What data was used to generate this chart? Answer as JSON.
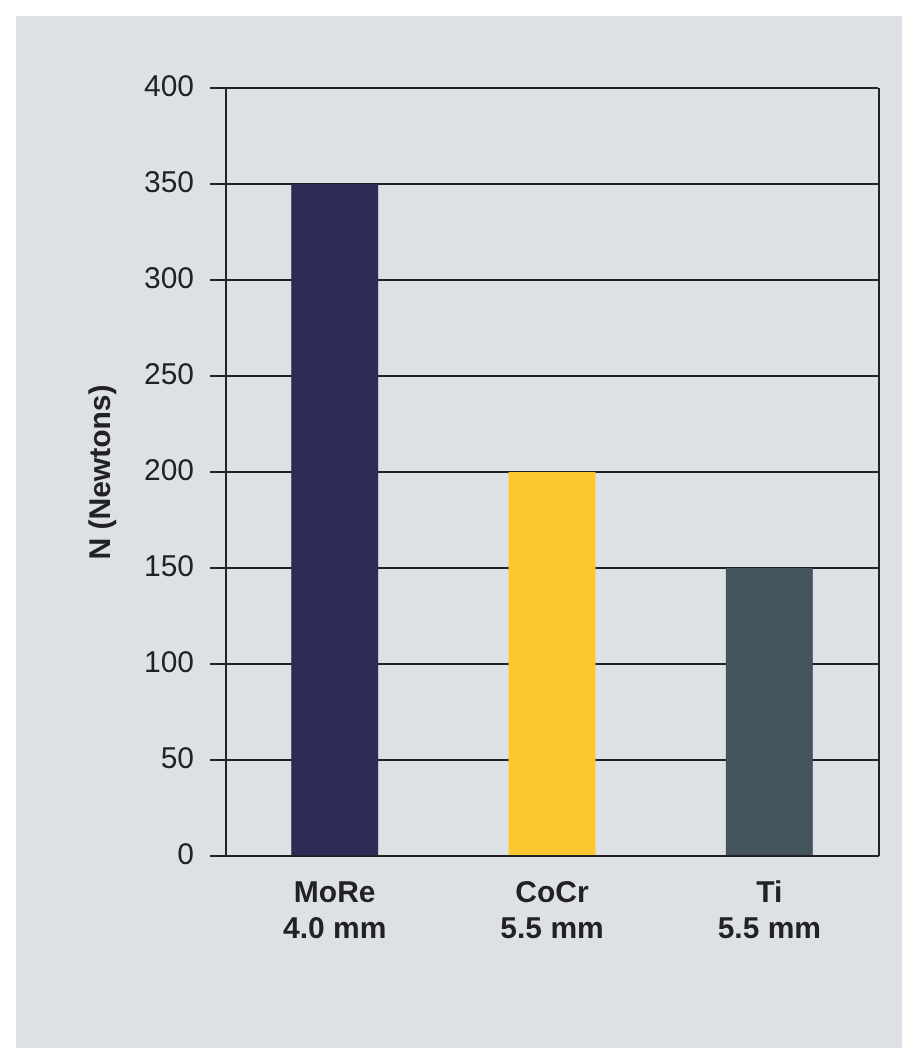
{
  "chart_data": {
    "type": "bar",
    "ylabel": "N (Newtons)",
    "categories": [
      "MoRe\n4.0 mm",
      "CoCr\n5.5 mm",
      "Ti\n5.5 mm"
    ],
    "values": [
      350,
      200,
      150
    ],
    "colors": [
      "#2e2b57",
      "#fdc82f",
      "#44545d"
    ],
    "ylim": [
      0,
      400
    ],
    "yticks": [
      0,
      50,
      100,
      150,
      200,
      250,
      300,
      350,
      400
    ],
    "grid": "y",
    "legend": false
  }
}
